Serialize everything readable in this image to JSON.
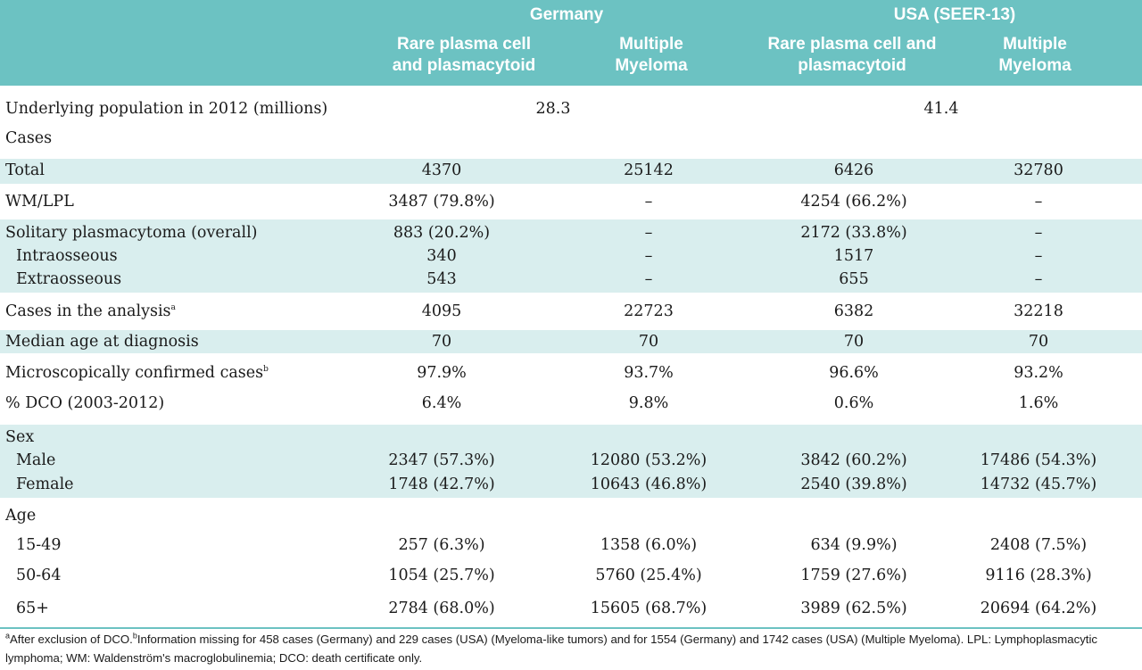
{
  "header": {
    "germany": "Germany",
    "usa": "USA (SEER-13)",
    "col_rare_line1": "Rare plasma cell",
    "col_rare_line2": "and plasmacytoid",
    "col_mm_line1": "Multiple",
    "col_mm_line2": "Myeloma",
    "col_rare_usa_line1": "Rare plasma cell and",
    "col_rare_usa_line2": "plasmacytoid"
  },
  "population": {
    "label": "Underlying population in 2012 (millions)",
    "germany": "28.3",
    "usa": "41.4"
  },
  "cases_heading": "Cases",
  "rows": {
    "total": {
      "label": "Total",
      "g_rare": "4370",
      "g_mm": "25142",
      "u_rare": "6426",
      "u_mm": "32780"
    },
    "wm": {
      "label": "WM/LPL",
      "g_rare": "3487 (79.8%)",
      "g_mm": "–",
      "u_rare": "4254 (66.2%)",
      "u_mm": "–"
    },
    "sp": {
      "label": "Solitary plasmacytoma (overall)",
      "g_rare": "883 (20.2%)",
      "g_mm": "–",
      "u_rare": "2172 (33.8%)",
      "u_mm": "–"
    },
    "intra": {
      "label": "Intraosseous",
      "g_rare": "340",
      "g_mm": "–",
      "u_rare": "1517",
      "u_mm": "–"
    },
    "extra": {
      "label": "Extraosseous",
      "g_rare": "543",
      "g_mm": "–",
      "u_rare": "655",
      "u_mm": "–"
    },
    "analysis": {
      "label": "Cases in the analysis",
      "sup": "a",
      "g_rare": "4095",
      "g_mm": "22723",
      "u_rare": "6382",
      "u_mm": "32218"
    },
    "median": {
      "label": "Median age at diagnosis",
      "g_rare": "70",
      "g_mm": "70",
      "u_rare": "70",
      "u_mm": "70"
    },
    "micro": {
      "label": "Microscopically confirmed cases",
      "sup": "b",
      "g_rare": "97.9%",
      "g_mm": "93.7%",
      "u_rare": "96.6%",
      "u_mm": "93.2%"
    },
    "dco": {
      "label": "% DCO (2003-2012)",
      "g_rare": "6.4%",
      "g_mm": "9.8%",
      "u_rare": "0.6%",
      "u_mm": "1.6%"
    },
    "sex": {
      "label": "Sex"
    },
    "male": {
      "label": "Male",
      "g_rare": "2347 (57.3%)",
      "g_mm": "12080 (53.2%)",
      "u_rare": "3842 (60.2%)",
      "u_mm": "17486 (54.3%)"
    },
    "female": {
      "label": "Female",
      "g_rare": "1748 (42.7%)",
      "g_mm": "10643 (46.8%)",
      "u_rare": "2540 (39.8%)",
      "u_mm": "14732 (45.7%)"
    },
    "age": {
      "label": "Age"
    },
    "a1549": {
      "label": "15-49",
      "g_rare": "257 (6.3%)",
      "g_mm": "1358 (6.0%)",
      "u_rare": "634 (9.9%)",
      "u_mm": "2408 (7.5%)"
    },
    "a5064": {
      "label": "50-64",
      "g_rare": "1054 (25.7%)",
      "g_mm": "5760 (25.4%)",
      "u_rare": "1759 (27.6%)",
      "u_mm": "9116 (28.3%)"
    },
    "a65": {
      "label": "65+",
      "g_rare": "2784 (68.0%)",
      "g_mm": "15605 (68.7%)",
      "u_rare": "3989 (62.5%)",
      "u_mm": "20694 (64.2%)"
    }
  },
  "footnote": {
    "sup_a": "a",
    "text_a": "After exclusion of DCO.",
    "sup_b": "b",
    "text_b": "Information missing for 458 cases (Germany) and 229 cases (USA) (Myeloma-like tumors) and for 1554 (Germany) and 1742 cases (USA) (Multiple Myeloma). LPL: Lymphoplasmacytic lymphoma; WM: Waldenström's macroglobulinemia; DCO: death certificate only."
  },
  "colors": {
    "header": "#6cc2c2",
    "band": "#d9eeee"
  }
}
